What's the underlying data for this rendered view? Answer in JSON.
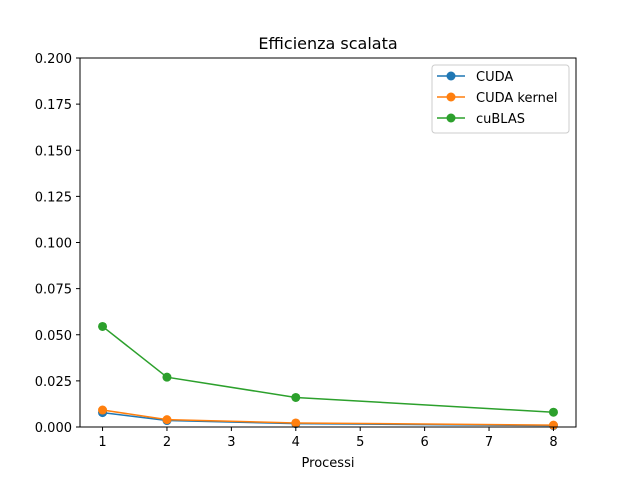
{
  "chart_data": {
    "type": "line",
    "title": "Efficienza scalata",
    "xlabel": "Processi",
    "ylabel": "",
    "x": [
      1,
      2,
      4,
      8
    ],
    "xlim": [
      0.65,
      8.35
    ],
    "ylim": [
      0,
      0.2
    ],
    "xticks": [
      "1",
      "2",
      "3",
      "4",
      "5",
      "6",
      "7",
      "8"
    ],
    "yticks": [
      "0.000",
      "0.025",
      "0.050",
      "0.075",
      "0.100",
      "0.125",
      "0.150",
      "0.175",
      "0.200"
    ],
    "grid": false,
    "legend": "top-right",
    "series": [
      {
        "name": "CUDA",
        "color": "#1f77b4",
        "values": [
          0.0078,
          0.0035,
          0.0018,
          0.0008
        ]
      },
      {
        "name": "CUDA kernel",
        "color": "#ff7f0e",
        "values": [
          0.0092,
          0.004,
          0.0022,
          0.001
        ]
      },
      {
        "name": "cuBLAS",
        "color": "#2ca02c",
        "values": [
          0.0545,
          0.027,
          0.016,
          0.008
        ]
      }
    ]
  }
}
